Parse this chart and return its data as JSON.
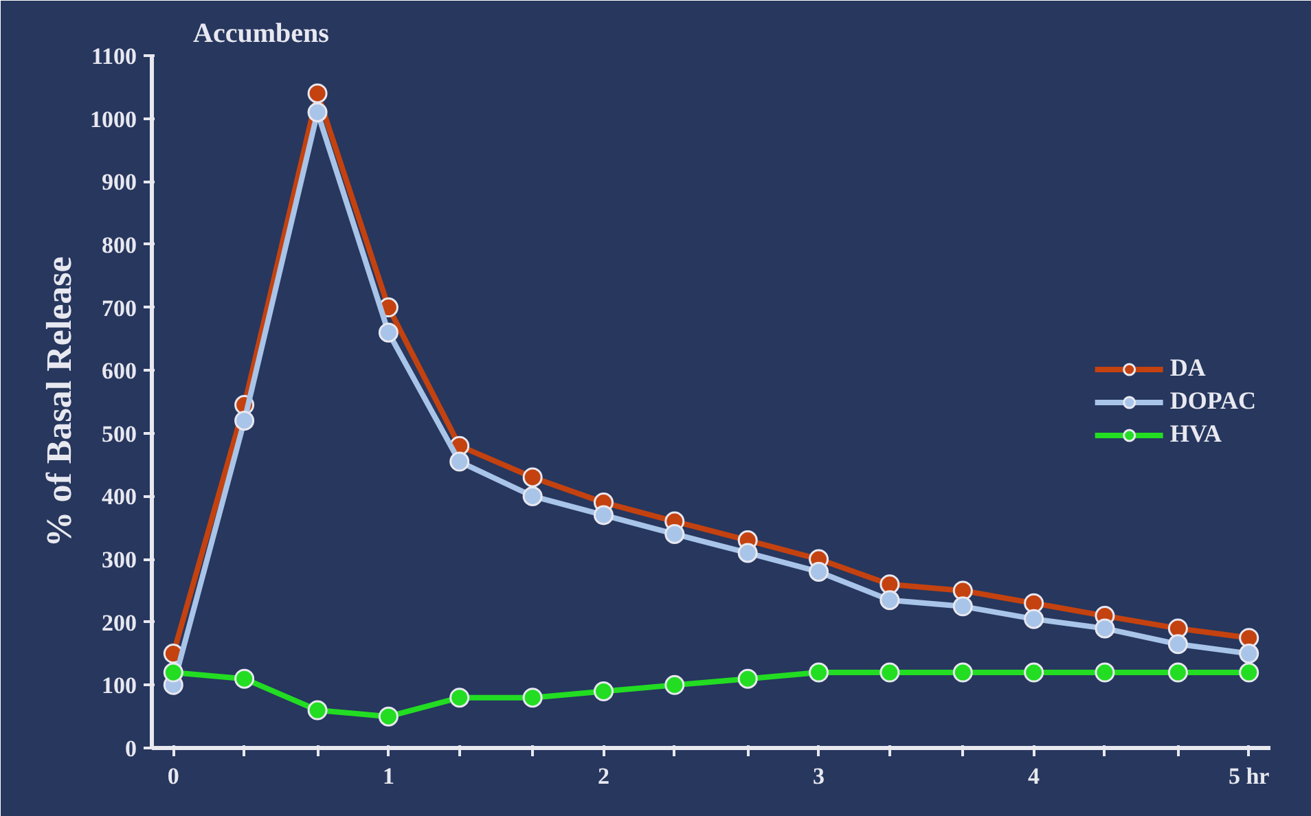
{
  "chart_data": {
    "type": "line",
    "title": "Accumbens",
    "ylabel": "% of Basal Release",
    "x": [
      0,
      0.33,
      0.67,
      1,
      1.33,
      1.67,
      2,
      2.33,
      2.67,
      3,
      3.33,
      3.67,
      4,
      4.33,
      4.67,
      5
    ],
    "series": [
      {
        "name": "DA",
        "color": "#c4420f",
        "values": [
          150,
          545,
          1040,
          700,
          480,
          430,
          390,
          360,
          330,
          300,
          260,
          250,
          230,
          210,
          190,
          175
        ]
      },
      {
        "name": "DOPAC",
        "color": "#a8c4e8",
        "values": [
          100,
          520,
          1010,
          660,
          455,
          400,
          370,
          340,
          310,
          280,
          235,
          225,
          205,
          190,
          165,
          150
        ]
      },
      {
        "name": "HVA",
        "color": "#22dd22",
        "values": [
          120,
          110,
          60,
          50,
          80,
          80,
          90,
          100,
          110,
          120,
          120,
          120,
          120,
          120,
          120,
          120
        ]
      }
    ],
    "xlim": [
      -0.1,
      5.1
    ],
    "ylim": [
      0,
      1100
    ],
    "xticks": [
      0,
      {
        "value": 0.33,
        "label": null
      },
      {
        "value": 0.67,
        "label": null
      },
      1,
      {
        "value": 1.33,
        "label": null
      },
      {
        "value": 1.67,
        "label": null
      },
      2,
      {
        "value": 2.33,
        "label": null
      },
      {
        "value": 2.67,
        "label": null
      },
      3,
      {
        "value": 3.33,
        "label": null
      },
      {
        "value": 3.67,
        "label": null
      },
      4,
      {
        "value": 4.33,
        "label": null
      },
      {
        "value": 4.67,
        "label": null
      },
      {
        "value": 5,
        "label": "5 hr"
      }
    ],
    "yticks": [
      0,
      100,
      200,
      300,
      400,
      500,
      600,
      700,
      800,
      900,
      1000,
      1100
    ],
    "grid": false,
    "legend": "right",
    "marker": "circle",
    "line_style": "solid"
  }
}
